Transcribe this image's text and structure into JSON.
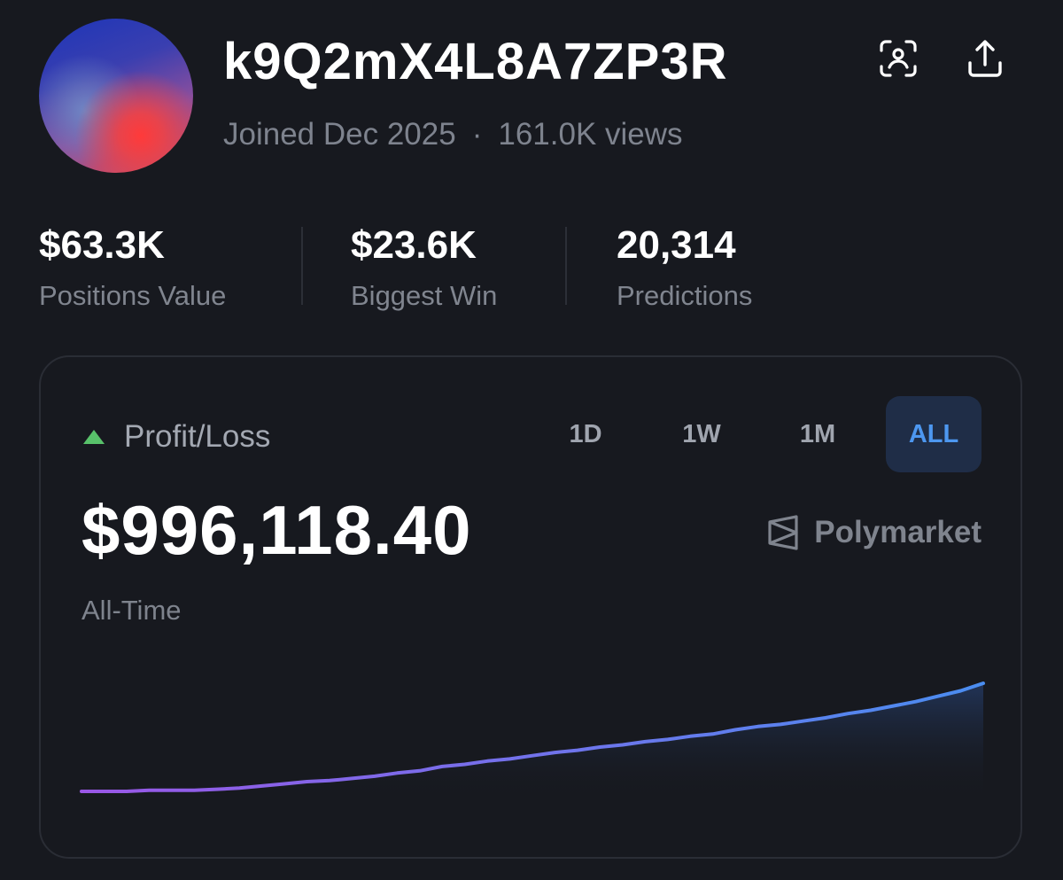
{
  "profile": {
    "username": "k9Q2mX4L8A7ZP3R",
    "joined": "Joined Dec 2025",
    "separator": "·",
    "views": "161.0K views"
  },
  "header_icons": [
    "face-scan-icon",
    "share-icon"
  ],
  "stats": [
    {
      "value": "$63.3K",
      "label": "Positions Value"
    },
    {
      "value": "$23.6K",
      "label": "Biggest Win"
    },
    {
      "value": "20,314",
      "label": "Predictions"
    }
  ],
  "pnl": {
    "label": "Profit/Loss",
    "amount": "$996,118.40",
    "period_label": "All-Time",
    "brand": "Polymarket",
    "ranges": [
      "1D",
      "1W",
      "1M",
      "ALL"
    ],
    "selected_range": "ALL",
    "colors": {
      "up": "#58c16a",
      "accent": "#4d97f0",
      "line_start": "#9a57e6",
      "line_end": "#4a8df0"
    }
  },
  "chart_data": {
    "type": "area",
    "title": "",
    "xlabel": "",
    "ylabel": "",
    "x": [
      0,
      1,
      2,
      3,
      4,
      5,
      6,
      7,
      8,
      9,
      10,
      11,
      12,
      13,
      14,
      15,
      16,
      17,
      18,
      19,
      20,
      21,
      22,
      23,
      24,
      25,
      26,
      27,
      28,
      29,
      30,
      31,
      32,
      33,
      34,
      35,
      36,
      37,
      38,
      39,
      40
    ],
    "series": [
      {
        "values": [
          0.0,
          0.0,
          0.0,
          0.01,
          0.01,
          0.01,
          0.02,
          0.03,
          0.05,
          0.07,
          0.09,
          0.1,
          0.12,
          0.14,
          0.17,
          0.19,
          0.23,
          0.25,
          0.28,
          0.3,
          0.33,
          0.36,
          0.38,
          0.41,
          0.43,
          0.46,
          0.48,
          0.51,
          0.53,
          0.57,
          0.6,
          0.62,
          0.65,
          0.68,
          0.72,
          0.75,
          0.79,
          0.83,
          0.88,
          0.93,
          1.0
        ]
      }
    ],
    "grid": false,
    "legend": "none"
  }
}
